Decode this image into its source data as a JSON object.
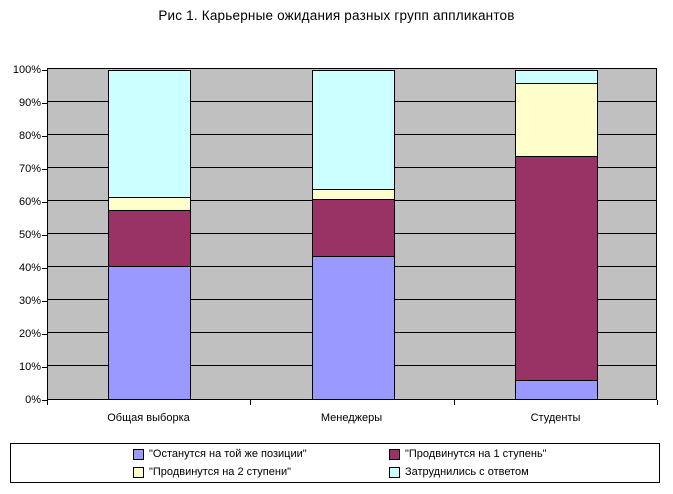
{
  "title": "Рис 1. Карьерные ожидания разных групп аппликантов",
  "chart_data": {
    "type": "bar",
    "variant": "stacked-100-percent",
    "title": "Рис 1. Карьерные ожидания разных групп аппликантов",
    "categories": [
      "Общая выборка",
      "Менеджеры",
      "Студенты"
    ],
    "series": [
      {
        "name": "\"Останутся на той же позиции\"",
        "color": "#9999FF",
        "values": [
          40.5,
          43.5,
          6
        ]
      },
      {
        "name": "\"Продвинутся на 1 ступень\"",
        "color": "#993366",
        "values": [
          17,
          17.5,
          68
        ]
      },
      {
        "name": "\"Продвинутся на 2 ступени\"",
        "color": "#FFFFCC",
        "values": [
          4,
          3,
          22
        ]
      },
      {
        "name": "Затруднились с ответом",
        "color": "#CCFFFF",
        "values": [
          38.5,
          36,
          4
        ]
      }
    ],
    "y_axis": {
      "min": 0,
      "max": 100,
      "step": 10,
      "tick_labels": [
        "0%",
        "10%",
        "20%",
        "30%",
        "40%",
        "50%",
        "60%",
        "70%",
        "80%",
        "90%",
        "100%"
      ]
    },
    "plot_background": "#C0C0C0",
    "gridlines": true,
    "gridline_color": "#000000",
    "legend_position": "bottom",
    "legend_layout": "2x2"
  }
}
